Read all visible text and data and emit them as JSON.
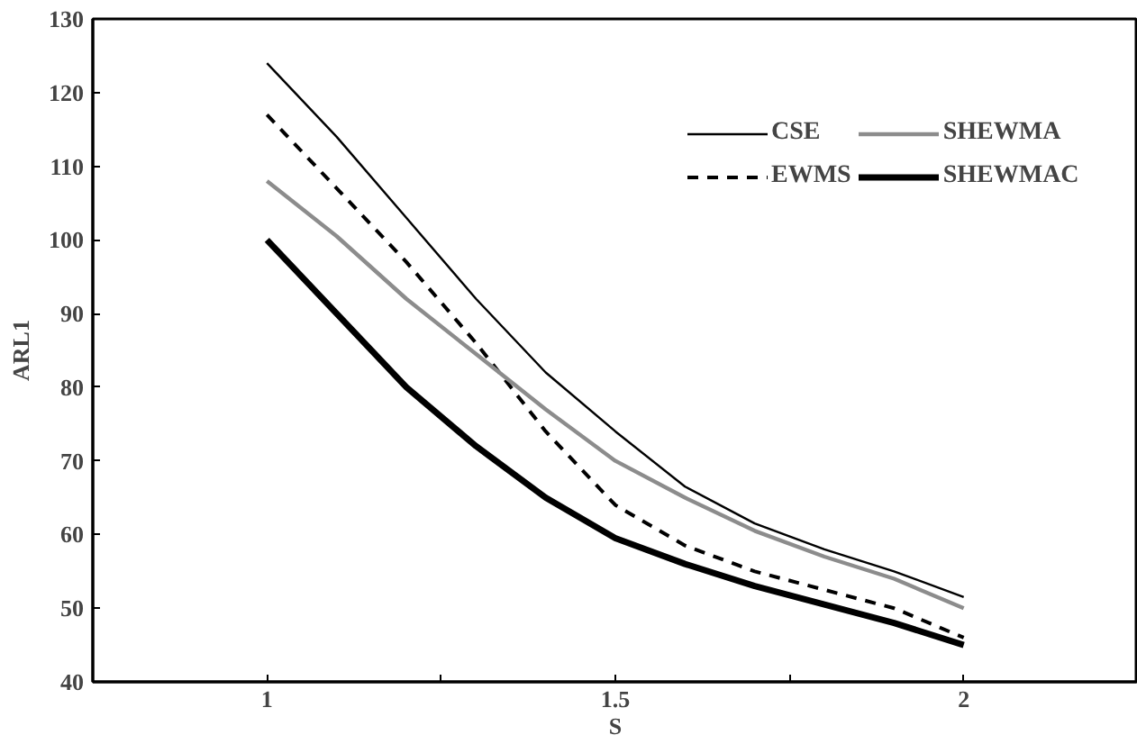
{
  "chart_data": {
    "type": "line",
    "xlabel": "S",
    "ylabel": "ARL1",
    "x": [
      1,
      1.1,
      1.2,
      1.3,
      1.4,
      1.5,
      1.6,
      1.7,
      1.8,
      1.9,
      2
    ],
    "xlim": [
      0.75,
      2.25
    ],
    "xticks": [
      1,
      {
        "value": 1.25,
        "label": null
      },
      1.5,
      {
        "value": 1.75,
        "label": null
      },
      2
    ],
    "ylim": [
      40,
      130
    ],
    "yticks": [
      40,
      50,
      60,
      70,
      80,
      90,
      100,
      110,
      120,
      130
    ],
    "grid": false,
    "legend": "top right",
    "marker": "none",
    "series": [
      {
        "name": "CSE",
        "color": "#000000",
        "line_style": "solid",
        "values": [
          124,
          114,
          103,
          92,
          82,
          74,
          66.5,
          61.5,
          58,
          55,
          51.5
        ]
      },
      {
        "name": "EWMS",
        "color": "#000000",
        "line_style": "dashed",
        "values": [
          117,
          107,
          97,
          86,
          74,
          64,
          58.5,
          55,
          52.5,
          50,
          46
        ]
      },
      {
        "name": "SHEWMA",
        "color": "#8c8c8c",
        "line_style": "solid",
        "values": [
          108,
          100.5,
          92,
          84.5,
          77,
          70,
          65,
          60.5,
          57,
          54,
          50
        ]
      },
      {
        "name": "SHEWMAC",
        "color": "#000000",
        "line_style": "solid",
        "values": [
          100,
          90,
          80,
          72,
          65,
          59.5,
          56,
          53,
          50.5,
          48,
          45
        ]
      }
    ]
  }
}
